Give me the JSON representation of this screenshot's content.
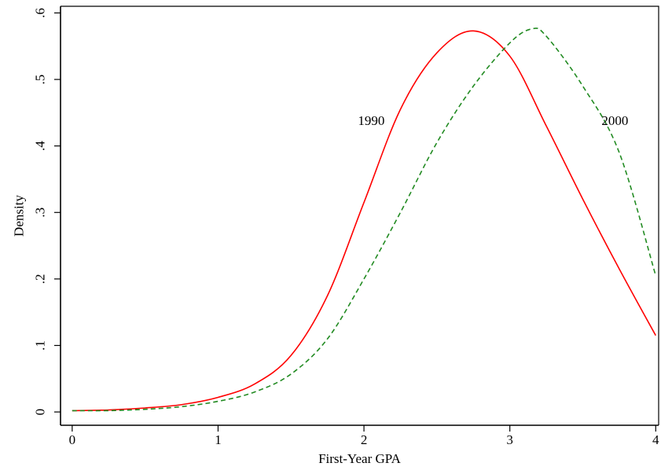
{
  "chart_data": {
    "type": "line",
    "title": "",
    "xlabel": "First-Year GPA",
    "ylabel": "Density",
    "xlim": [
      -0.08,
      4.02
    ],
    "ylim": [
      -0.02,
      0.61
    ],
    "xticks": [
      0,
      1,
      2,
      3,
      4
    ],
    "xtick_labels": [
      "0",
      "1",
      "2",
      "3",
      "4"
    ],
    "yticks": [
      0,
      0.1,
      0.2,
      0.3,
      0.4,
      0.5,
      0.6
    ],
    "ytick_labels": [
      "0",
      ".1",
      ".2",
      ".3",
      ".4",
      ".5",
      ".6"
    ],
    "grid": false,
    "legend": "none",
    "series": [
      {
        "line_style": "solid",
        "color": "#ff0000",
        "x": [
          0,
          0.25,
          0.5,
          0.75,
          1.0,
          1.25,
          1.5,
          1.75,
          2.0,
          2.25,
          2.5,
          2.75,
          3.0,
          3.25,
          3.5,
          3.75,
          4.0
        ],
        "y": [
          0.002,
          0.003,
          0.006,
          0.011,
          0.022,
          0.042,
          0.085,
          0.175,
          0.315,
          0.455,
          0.54,
          0.573,
          0.535,
          0.43,
          0.32,
          0.215,
          0.115
        ]
      },
      {
        "line_style": "dashed",
        "color": "#228B22",
        "x": [
          0,
          0.25,
          0.5,
          0.75,
          1.0,
          1.25,
          1.5,
          1.75,
          2.0,
          2.25,
          2.5,
          2.75,
          3.0,
          3.15,
          3.25,
          3.5,
          3.75,
          4.0
        ],
        "y": [
          0.002,
          0.002,
          0.004,
          0.008,
          0.016,
          0.03,
          0.057,
          0.11,
          0.2,
          0.3,
          0.405,
          0.49,
          0.555,
          0.576,
          0.565,
          0.49,
          0.39,
          0.205
        ]
      }
    ],
    "annotations": [
      {
        "text": "1990",
        "x": 2.05,
        "y": 0.438
      },
      {
        "text": "2000",
        "x": 3.72,
        "y": 0.438
      }
    ]
  }
}
